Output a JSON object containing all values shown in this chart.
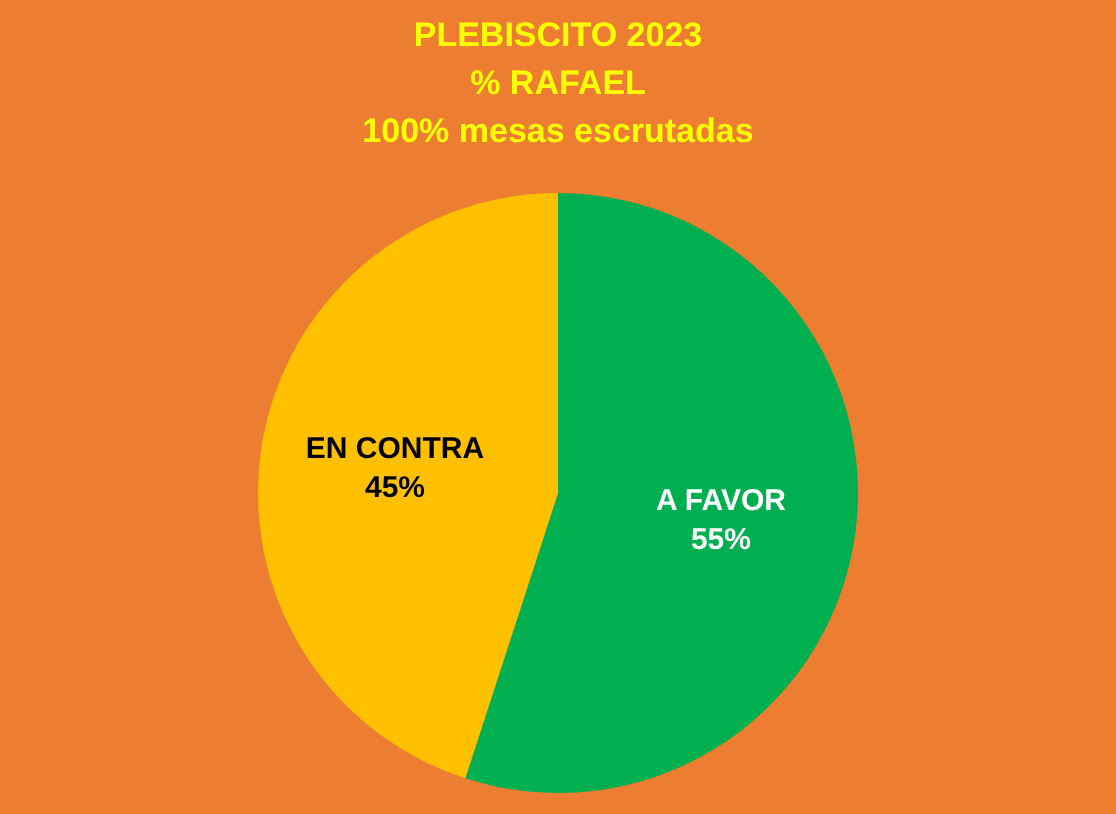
{
  "chart_data": {
    "type": "pie",
    "title": "PLEBISCITO 2023",
    "subtitle": "% RAFAEL",
    "annotations": [
      "100% mesas escrutadas"
    ],
    "categories": [
      "A FAVOR",
      "EN CONTRA"
    ],
    "values": [
      55,
      45
    ],
    "value_labels": [
      "55%",
      "45%"
    ],
    "colors": [
      "#00b050",
      "#ffc000"
    ]
  }
}
